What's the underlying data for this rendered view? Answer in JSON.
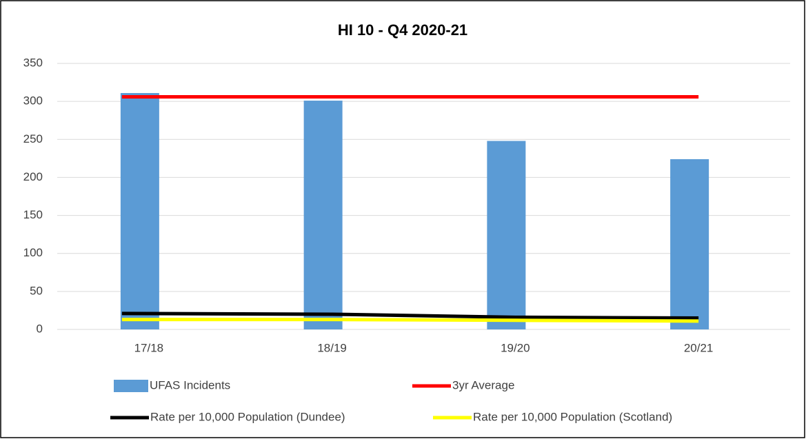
{
  "chart_data": {
    "type": "bar",
    "title": "HI 10 - Q4 2020-21",
    "categories": [
      "17/18",
      "18/19",
      "19/20",
      "20/21"
    ],
    "series": [
      {
        "name": "UFAS Incidents",
        "type": "bar",
        "color": "#5b9bd5",
        "values": [
          311,
          301,
          248,
          224
        ]
      },
      {
        "name": "3yr Average",
        "type": "line",
        "color": "#ff0000",
        "values": [
          306,
          306,
          306,
          306
        ]
      },
      {
        "name": "Rate per 10,000 Population (Dundee)",
        "type": "line",
        "color": "#000000",
        "values": [
          21,
          20,
          16,
          15
        ]
      },
      {
        "name": "Rate per 10,000 Population (Scotland)",
        "type": "line",
        "color": "#ffff00",
        "values": [
          13,
          13,
          12,
          11
        ]
      }
    ],
    "ylim": [
      0,
      350
    ],
    "yticks": [
      0,
      50,
      100,
      150,
      200,
      250,
      300,
      350
    ],
    "grid": true,
    "legend": "bottom"
  }
}
